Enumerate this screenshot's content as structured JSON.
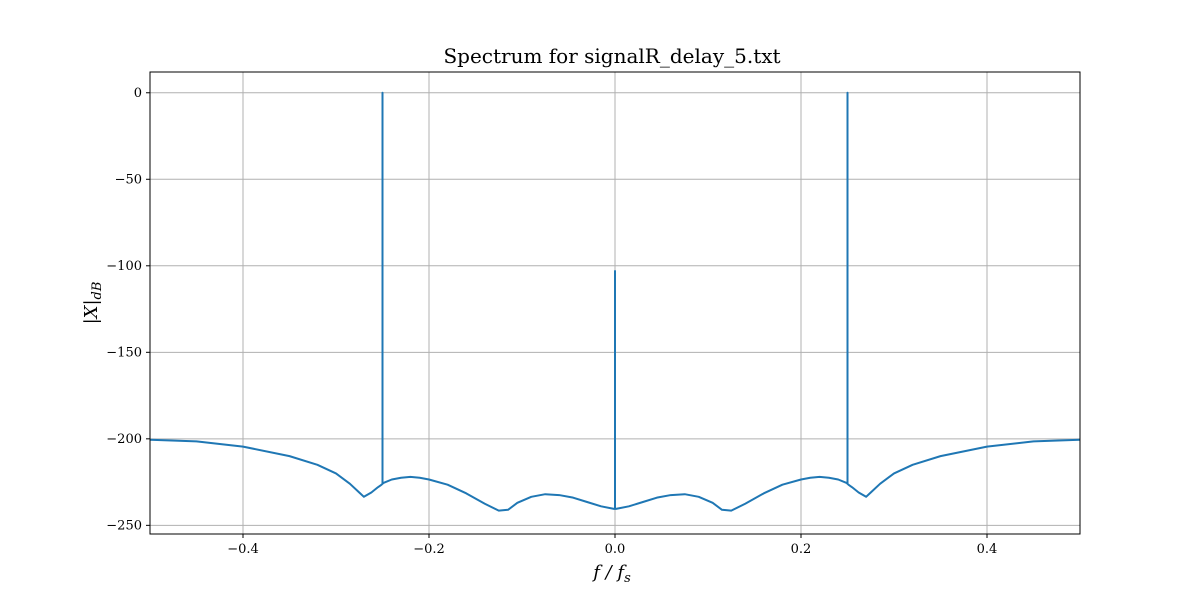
{
  "chart_data": {
    "type": "line",
    "title": "Spectrum for signalR_delay_5.txt",
    "xlabel": {
      "main": "f / f",
      "subscript": "s"
    },
    "ylabel": {
      "main": "|X|",
      "subscript": "dB"
    },
    "xlim": [
      -0.5,
      0.5
    ],
    "ylim": [
      -255,
      12
    ],
    "xticks": [
      -0.4,
      -0.2,
      0.0,
      0.2,
      0.4
    ],
    "xtick_labels": [
      "−0.4",
      "−0.2",
      "0.0",
      "0.2",
      "0.4"
    ],
    "yticks": [
      0,
      -50,
      -100,
      -150,
      -200,
      -250
    ],
    "ytick_labels": [
      "0",
      "−50",
      "−100",
      "−150",
      "−200",
      "−250"
    ],
    "grid": true,
    "line_color": "#1f77b4",
    "series": [
      {
        "x": [
          -0.5,
          -0.45,
          -0.4,
          -0.35,
          -0.32,
          -0.3,
          -0.285,
          -0.275,
          -0.27,
          -0.262,
          -0.255,
          -0.251,
          -0.25,
          -0.25,
          -0.25,
          -0.249,
          -0.24,
          -0.23,
          -0.22,
          -0.21,
          -0.2,
          -0.18,
          -0.16,
          -0.14,
          -0.125,
          -0.115,
          -0.105,
          -0.09,
          -0.075,
          -0.06,
          -0.045,
          -0.03,
          -0.015,
          -0.001,
          0.0,
          0.0,
          0.0,
          0.001,
          0.015,
          0.03,
          0.045,
          0.06,
          0.075,
          0.09,
          0.105,
          0.115,
          0.125,
          0.14,
          0.16,
          0.18,
          0.2,
          0.21,
          0.22,
          0.23,
          0.24,
          0.249,
          0.25,
          0.25,
          0.25,
          0.251,
          0.255,
          0.262,
          0.27,
          0.275,
          0.285,
          0.3,
          0.32,
          0.35,
          0.4,
          0.45,
          0.5
        ],
        "y": [
          -200.5,
          -201.5,
          -204.5,
          -210,
          -215,
          -220,
          -226,
          -231,
          -233.5,
          -231,
          -228,
          -226.5,
          -226,
          0,
          -226,
          -225.5,
          -223.5,
          -222.5,
          -222,
          -222.5,
          -223.5,
          -226.5,
          -231.5,
          -237.5,
          -241.5,
          -241,
          -237,
          -233.5,
          -232,
          -232.5,
          -234,
          -236.5,
          -239,
          -240.5,
          -240.5,
          -103,
          -240.5,
          -240.5,
          -239,
          -236.5,
          -234,
          -232.5,
          -232,
          -233.5,
          -237,
          -241,
          -241.5,
          -237.5,
          -231.5,
          -226.5,
          -223.5,
          -222.5,
          -222,
          -222.5,
          -223.5,
          -225.5,
          -226,
          0,
          -226,
          -226.5,
          -228,
          -231,
          -233.5,
          -231,
          -226,
          -220,
          -215,
          -210,
          -204.5,
          -201.5,
          -200.5
        ]
      }
    ]
  }
}
